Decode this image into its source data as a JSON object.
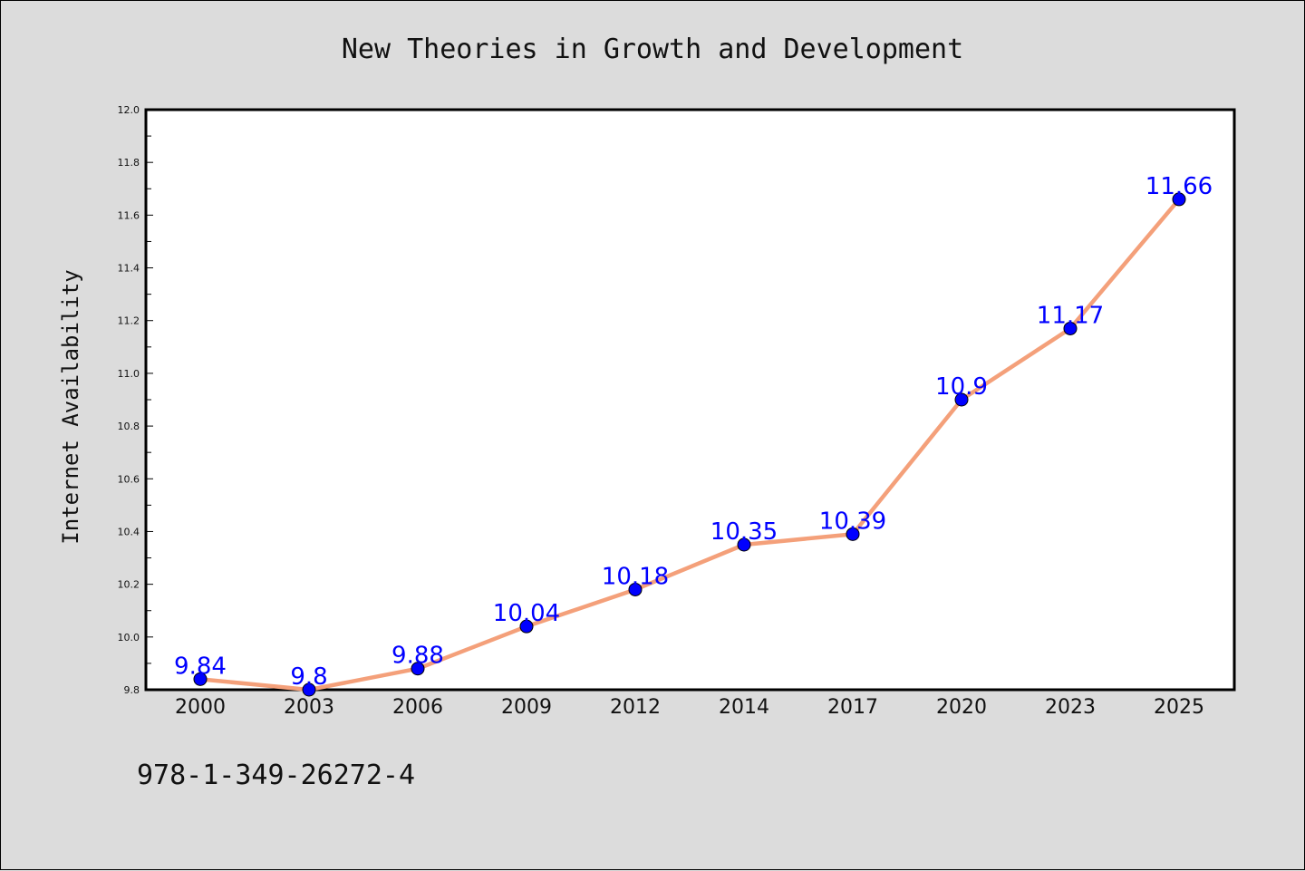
{
  "chart_data": {
    "type": "line",
    "title": "New Theories in Growth and Development",
    "xlabel": "",
    "ylabel": "Internet Availability",
    "categories": [
      "2000",
      "2003",
      "2006",
      "2009",
      "2012",
      "2014",
      "2017",
      "2020",
      "2023",
      "2025"
    ],
    "series": [
      {
        "values": [
          9.84,
          9.8,
          9.88,
          10.04,
          10.18,
          10.35,
          10.39,
          10.9,
          11.17,
          11.66
        ]
      }
    ],
    "data_labels": [
      "9.84",
      "9.8",
      "9.88",
      "10.04",
      "10.18",
      "10.35",
      "10.39",
      "10.9",
      "11.17",
      "11.66"
    ],
    "ylim": [
      9.8,
      12.0
    ],
    "yticks": [
      "9.8",
      "10.0",
      "10.2",
      "10.4",
      "10.6",
      "10.8",
      "11.0",
      "11.2",
      "11.4",
      "11.6",
      "11.8",
      "12.0"
    ],
    "grid": false,
    "legend": "none",
    "colors": {
      "line": "#f4a07a",
      "marker": "#0000ff",
      "label": "#0000ff",
      "background": "#dcdcdc",
      "plot_area": "#ffffff"
    }
  },
  "footer": {
    "isbn": "978-1-349-26272-4"
  }
}
